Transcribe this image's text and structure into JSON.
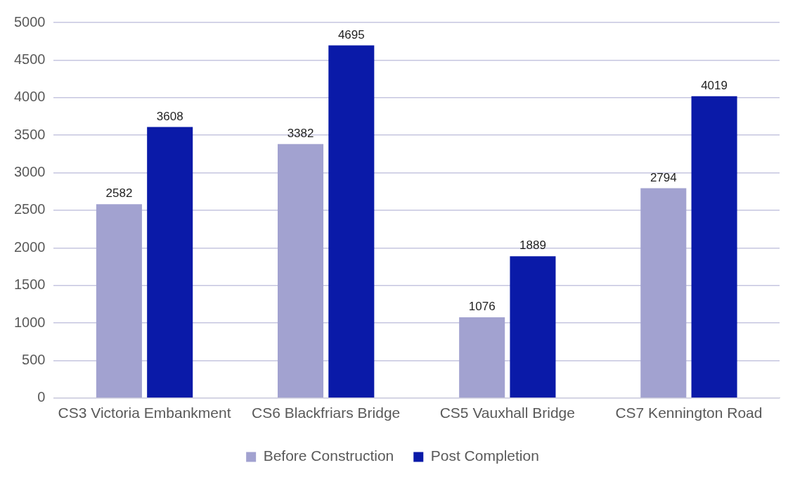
{
  "chart_data": {
    "type": "bar",
    "categories": [
      "CS3 Victoria Embankment",
      "CS6 Blackfriars Bridge",
      "CS5 Vauxhall Bridge",
      "CS7 Kennington Road"
    ],
    "series": [
      {
        "name": "Before Construction",
        "color": "#a2a2d0",
        "values": [
          2582,
          3382,
          1076,
          2794
        ]
      },
      {
        "name": "Post Completion",
        "color": "#0a1aa8",
        "values": [
          3608,
          4695,
          1889,
          4019
        ]
      }
    ],
    "ylim": [
      0,
      5000
    ],
    "yticks": [
      0,
      500,
      1000,
      1500,
      2000,
      2500,
      3000,
      3500,
      4000,
      4500,
      5000
    ],
    "grid": "y",
    "legend": "bottom",
    "data_labels": true
  }
}
